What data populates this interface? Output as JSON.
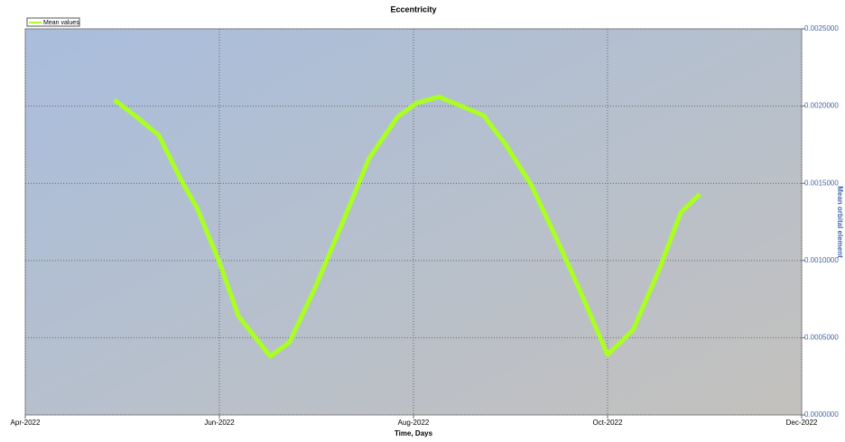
{
  "chart_data": {
    "type": "line",
    "title": "Eccentricity",
    "xlabel": "Time, Days",
    "ylabel": "Mean orbital element",
    "legend": "upper left",
    "grid": true,
    "x": [
      28,
      35,
      42,
      49,
      54,
      61,
      67,
      77,
      83,
      91,
      100,
      108,
      117,
      123,
      130,
      137,
      144,
      151,
      159,
      167,
      174,
      183,
      191,
      199,
      206,
      212
    ],
    "series": [
      {
        "name": "Mean values",
        "color": "#aaff22",
        "values": [
          0.00204,
          0.00193,
          0.00181,
          0.00152,
          0.00134,
          0.00099,
          0.00064,
          0.00038,
          0.00047,
          0.00082,
          0.00126,
          0.00166,
          0.00193,
          0.00202,
          0.00206,
          0.002,
          0.00194,
          0.00175,
          0.00149,
          0.00114,
          0.00082,
          0.00039,
          0.00055,
          0.00093,
          0.00131,
          0.00143
        ]
      }
    ],
    "xlim": [
      0,
      244
    ],
    "xticks": [
      {
        "value": 0,
        "label": "Apr-2022"
      },
      {
        "value": 61,
        "label": "Jun-2022"
      },
      {
        "value": 122,
        "label": "Aug-2022"
      },
      {
        "value": 183,
        "label": "Oct-2022"
      },
      {
        "value": 244,
        "label": "Dec-2022"
      }
    ],
    "ylim": [
      0,
      0.0025
    ],
    "yticks": [
      {
        "value": 0,
        "label": "0.0000000"
      },
      {
        "value": 0.0005,
        "label": "0.0005000"
      },
      {
        "value": 0.001,
        "label": "0.0010000"
      },
      {
        "value": 0.0015,
        "label": "0.0015000"
      },
      {
        "value": 0.002,
        "label": "0.0020000"
      },
      {
        "value": 0.0025,
        "label": "0.0025000"
      }
    ]
  }
}
